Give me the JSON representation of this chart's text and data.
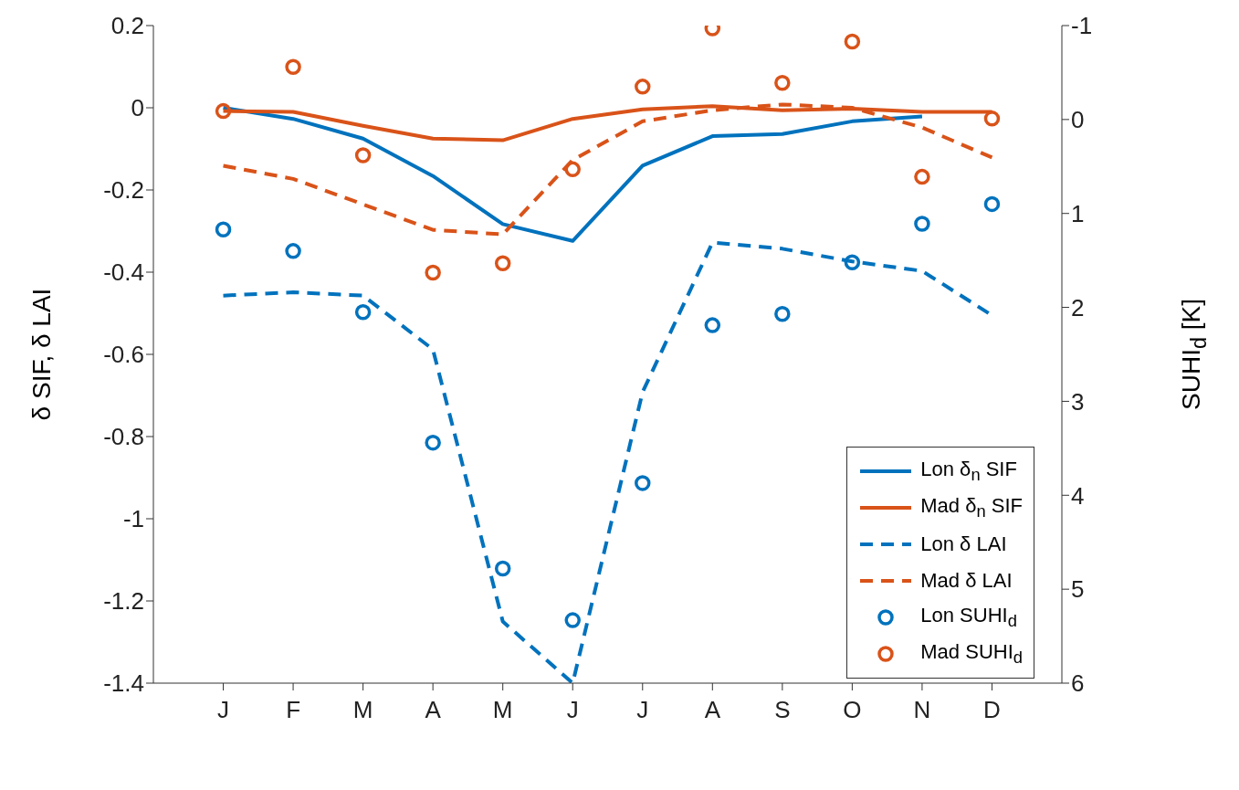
{
  "chart_data": {
    "type": "line",
    "categories": [
      "J",
      "F",
      "M",
      "A",
      "M",
      "J",
      "J",
      "A",
      "S",
      "O",
      "N",
      "D"
    ],
    "ylabel": "δ SIF, δ LAI",
    "y2label": "SUHI$_{d}$ [K]",
    "ylim": [
      -1.4,
      0.2
    ],
    "yticks": [
      -1.4,
      -1.2,
      -1,
      -0.8,
      -0.6,
      -0.4,
      -0.2,
      0,
      0.2
    ],
    "y2lim": [
      6,
      -1
    ],
    "y2ticks": [
      -1,
      0,
      1,
      2,
      3,
      4,
      5,
      6
    ],
    "grid": false,
    "legend": "bottom right",
    "series": [
      {
        "name": "Lon δ$_{n}$ SIF",
        "color": "#0072bd",
        "line_style": "solid",
        "marker": "none",
        "values": [
          0,
          -0.027,
          -0.075,
          -0.166,
          -0.283,
          -0.324,
          -0.141,
          -0.069,
          -0.064,
          -0.033,
          -0.021,
          null
        ]
      },
      {
        "name": "Mad δ$_{n}$ SIF",
        "color": "#d95319",
        "line_style": "solid",
        "marker": "none",
        "values": [
          -0.008,
          -0.01,
          -0.044,
          -0.075,
          -0.079,
          -0.027,
          -0.004,
          0.004,
          -0.006,
          -0.002,
          -0.01,
          -0.01
        ]
      },
      {
        "name": "Lon δ LAI",
        "color": "#0072bd",
        "line_style": "dashed",
        "marker": "none",
        "values": [
          -0.457,
          -0.449,
          -0.457,
          -0.588,
          -1.25,
          -1.4,
          -0.692,
          -0.328,
          -0.343,
          -0.374,
          -0.397,
          -0.505
        ]
      },
      {
        "name": "Mad δ LAI",
        "color": "#d95319",
        "line_style": "dashed",
        "marker": "none",
        "values": [
          -0.141,
          -0.173,
          -0.235,
          -0.297,
          -0.308,
          -0.127,
          -0.033,
          -0.006,
          0.008,
          0,
          -0.048,
          -0.121
        ]
      },
      {
        "name": "Lon SUHI$_{d}$",
        "color": "#0072bd",
        "type": "scatter",
        "axis": "y2",
        "marker": "circle",
        "values": [
          1.17,
          1.4,
          2.05,
          3.44,
          4.78,
          5.33,
          3.87,
          2.19,
          2.07,
          1.52,
          1.11,
          0.9
        ]
      },
      {
        "name": "Mad SUHI$_{d}$",
        "color": "#d95319",
        "type": "scatter",
        "axis": "y2",
        "marker": "circle",
        "values": [
          -0.09,
          -0.56,
          0.38,
          1.63,
          1.53,
          0.53,
          -0.35,
          -0.97,
          -0.39,
          -0.83,
          0.61,
          -0.01
        ]
      }
    ]
  }
}
